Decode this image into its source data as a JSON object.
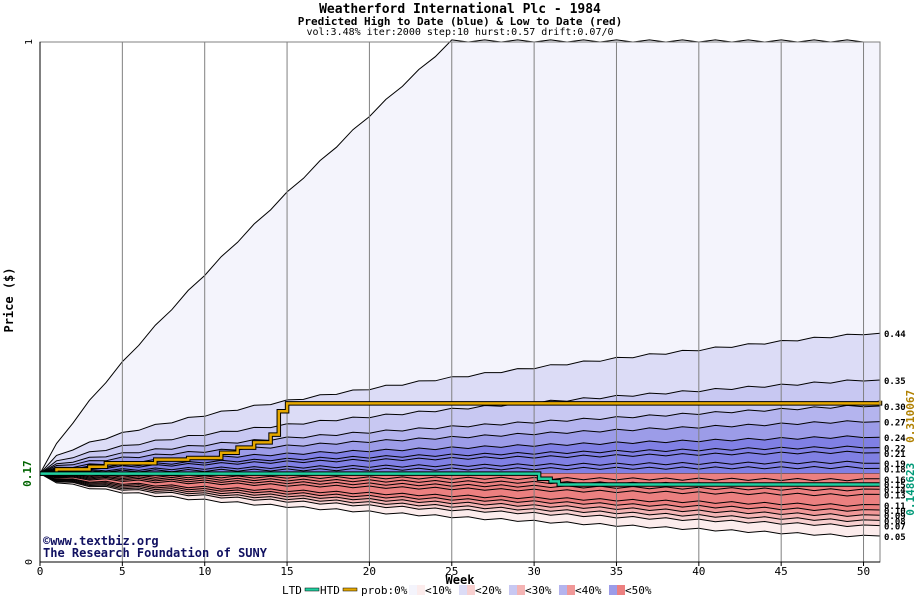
{
  "chart_data": {
    "type": "area",
    "title": "Weatherford International Plc - 1984",
    "subtitle": "Predicted High to Date (blue) &  Low to Date (red)",
    "params": "vol:3.48% iter:2000 step:10 hurst:0.57 drift:0.07/0",
    "xlabel": "Week",
    "ylabel": "Price ($)",
    "xlim": [
      0,
      51
    ],
    "ylim": [
      0,
      1
    ],
    "x_ticks": [
      "0",
      "5",
      "10",
      "15",
      "20",
      "25",
      "30",
      "35",
      "40",
      "45",
      "50"
    ],
    "y_ticks": [
      "0",
      "1"
    ],
    "start_price": 0.17,
    "start_price_label": "0.17",
    "right_labels": [
      "0.44",
      "0.35",
      "0.30",
      "0.27",
      "0.24",
      "0.22",
      "0.21",
      "0.19",
      "0.18",
      "0.16",
      "0.15",
      "0.14",
      "0.13",
      "0.11",
      "0.10",
      "0.09",
      "0.08",
      "0.07",
      "0.05"
    ],
    "htd_final_label": "0.310067",
    "ltd_final_label": "0.148623",
    "watermark": [
      "©www.textbiz.org",
      "The Research Foundation of SUNY"
    ],
    "legend": [
      "LTD",
      "HTD",
      "prob:0%",
      "<10%",
      "<20%",
      "<30%",
      "<40%",
      "<50%"
    ],
    "weeks": [
      0,
      1,
      2,
      3,
      4,
      5,
      6,
      7,
      8,
      9,
      10,
      11,
      12,
      13,
      14,
      15,
      16,
      17,
      18,
      19,
      20,
      21,
      22,
      23,
      24,
      25,
      26,
      27,
      28,
      29,
      30,
      31,
      32,
      33,
      34,
      35,
      36,
      37,
      38,
      39,
      40,
      41,
      42,
      43,
      44,
      45,
      46,
      47,
      48,
      49,
      50,
      51
    ],
    "bands_high": [
      {
        "name": "max",
        "start": 0.17,
        "end": 1.0,
        "shape": "concave-early",
        "color": "#f4f4fc"
      },
      {
        "name": "<10%",
        "start": 0.17,
        "end": 0.44,
        "color": "#dcdcf6"
      },
      {
        "name": "<20%",
        "start": 0.17,
        "end": 0.35,
        "color": "#c8c8f2"
      },
      {
        "name": "<30%",
        "start": 0.17,
        "end": 0.3,
        "color": "#b4b4ee"
      },
      {
        "name": "<40%",
        "start": 0.17,
        "end": 0.27,
        "color": "#9c9ce8"
      },
      {
        "name": "<50%",
        "start": 0.17,
        "end": 0.24,
        "color": "#8080e4"
      }
    ],
    "band_lines_high_end": [
      0.22,
      0.21,
      0.19,
      0.18,
      0.17
    ],
    "bands_low": [
      {
        "name": "min",
        "start": 0.17,
        "end": 0.05,
        "color": "#fcecec"
      },
      {
        "name": "<10%",
        "start": 0.17,
        "end": 0.07,
        "color": "#f8d0d0"
      },
      {
        "name": "<20%",
        "start": 0.17,
        "end": 0.08,
        "color": "#f4b4b4"
      },
      {
        "name": "<30%",
        "start": 0.17,
        "end": 0.09,
        "color": "#f09898"
      },
      {
        "name": "<40%",
        "start": 0.17,
        "end": 0.1,
        "color": "#ec8080"
      }
    ],
    "band_lines_low_end": [
      0.11,
      0.13,
      0.14,
      0.15,
      0.16
    ],
    "series": [
      {
        "name": "HTD",
        "color": "#e6a800",
        "steps": [
          [
            0,
            0.17
          ],
          [
            1,
            0.178
          ],
          [
            3,
            0.183
          ],
          [
            4,
            0.19
          ],
          [
            7,
            0.197
          ],
          [
            9,
            0.2
          ],
          [
            11,
            0.21
          ],
          [
            12,
            0.22
          ],
          [
            13,
            0.23
          ],
          [
            14,
            0.245
          ],
          [
            14.5,
            0.29
          ],
          [
            15,
            0.305
          ],
          [
            51,
            0.31
          ]
        ]
      },
      {
        "name": "LTD",
        "color": "#20d0a0",
        "steps": [
          [
            0,
            0.17
          ],
          [
            30,
            0.17
          ],
          [
            30.3,
            0.16
          ],
          [
            31,
            0.155
          ],
          [
            31.5,
            0.149
          ],
          [
            51,
            0.149
          ]
        ]
      }
    ],
    "grid": true
  }
}
